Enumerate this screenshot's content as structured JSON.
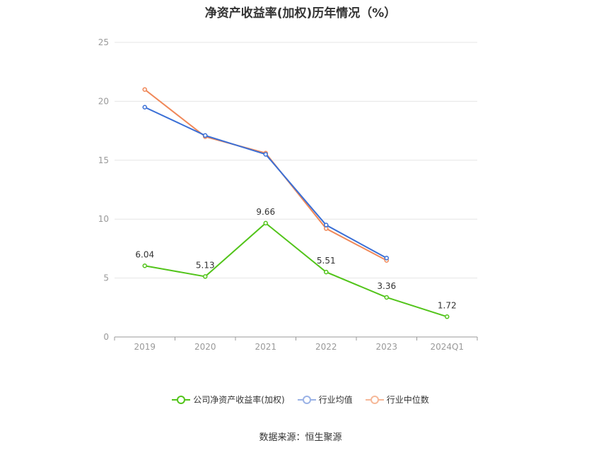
{
  "title": "净资产收益率(加权)历年情况（%）",
  "source": "数据来源：恒生聚源",
  "chart_data": {
    "type": "line",
    "categories": [
      "2019",
      "2020",
      "2021",
      "2022",
      "2023",
      "2024Q1"
    ],
    "ylim": [
      0,
      25
    ],
    "yticks": [
      0,
      5,
      10,
      15,
      20,
      25
    ],
    "grid": true,
    "legend_position": "bottom",
    "series": [
      {
        "name": "公司净资产收益率(加权)",
        "color": "#52c41a",
        "values": [
          6.04,
          5.13,
          9.66,
          5.51,
          3.36,
          1.72
        ],
        "labels": [
          "6.04",
          "5.13",
          "9.66",
          "5.51",
          "3.36",
          "1.72"
        ]
      },
      {
        "name": "行业均值",
        "color": "#3a6fd6",
        "values": [
          19.5,
          17.1,
          15.5,
          9.5,
          6.7,
          null
        ]
      },
      {
        "name": "行业中位数",
        "color": "#f08859",
        "values": [
          21.0,
          17.0,
          15.6,
          9.2,
          6.5,
          null
        ]
      }
    ]
  }
}
